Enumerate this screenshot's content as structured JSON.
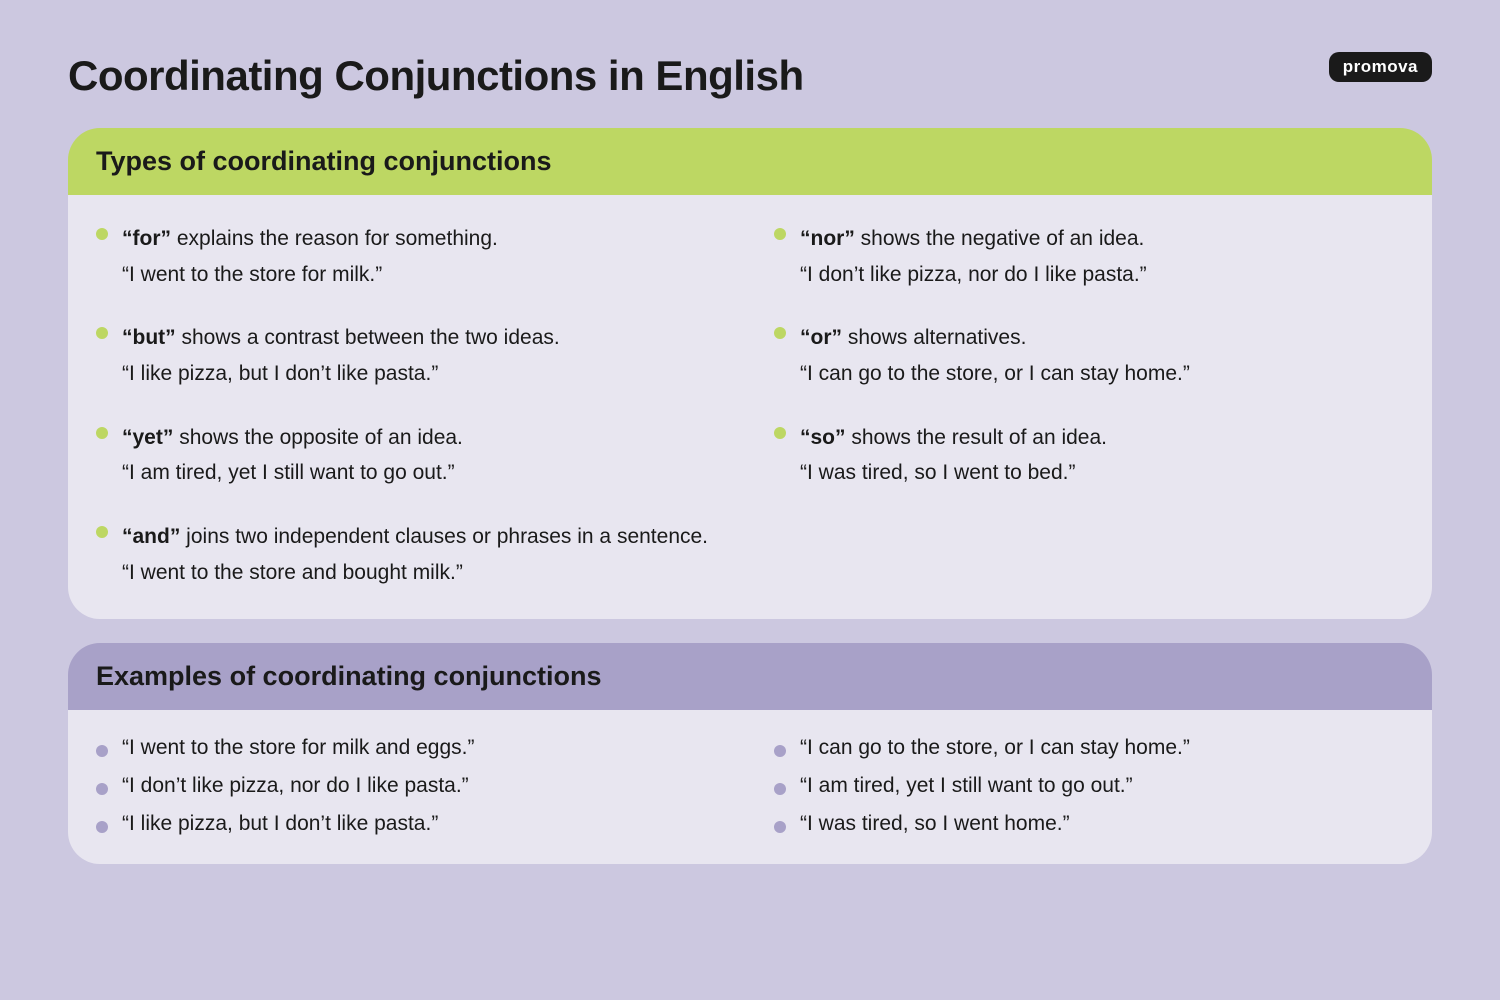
{
  "brand": "promova",
  "title": "Coordinating Conjunctions in English",
  "colors": {
    "page_bg": "#ccc8e0",
    "card_bg": "#e8e6f0",
    "header_green": "#bdd763",
    "header_purple": "#a8a1c8",
    "bullet_green": "#bdd763",
    "bullet_grey": "#a8a1c8",
    "text": "#1a1a1a",
    "brand_bg": "#1a1a1a",
    "brand_fg": "#ffffff"
  },
  "typography": {
    "title_size_pt": 42,
    "section_header_size_pt": 27,
    "body_size_pt": 21,
    "title_weight": 800,
    "body_weight": 400,
    "keyword_weight": 800
  },
  "sections": {
    "types": {
      "header": "Types of coordinating conjunctions",
      "items": [
        {
          "keyword": "“for”",
          "desc": " explains the reason for something.",
          "example": "“I went to the store for milk.”"
        },
        {
          "keyword": "“nor”",
          "desc": " shows the negative of an idea.",
          "example": "“I don’t like pizza, nor do I like pasta.”"
        },
        {
          "keyword": "“but”",
          "desc": " shows a contrast between the two ideas.",
          "example": "“I like pizza, but I don’t like pasta.”"
        },
        {
          "keyword": "“or”",
          "desc": " shows alternatives.",
          "example": "“I can go to the store, or I can stay home.”"
        },
        {
          "keyword": "“yet”",
          "desc": " shows the opposite of an idea.",
          "example": "“I am tired, yet I still want to go out.”"
        },
        {
          "keyword": "“so”",
          "desc": " shows the result of an idea.",
          "example": "“I was tired, so I went to bed.”"
        },
        {
          "keyword": "“and”",
          "desc": " joins two independent clauses or phrases in a sentence.",
          "example": "“I went to the store and bought milk.”"
        }
      ]
    },
    "examples": {
      "header": "Examples of coordinating conjunctions",
      "items": [
        "“I went to the store for milk and eggs.”",
        "“I can go to the store, or I can stay home.”",
        "“I don’t like pizza, nor do I like pasta.”",
        "“I am tired, yet I still want to go out.”",
        "“I like pizza, but I don’t like pasta.”",
        "“I was tired, so I went home.”"
      ]
    }
  }
}
